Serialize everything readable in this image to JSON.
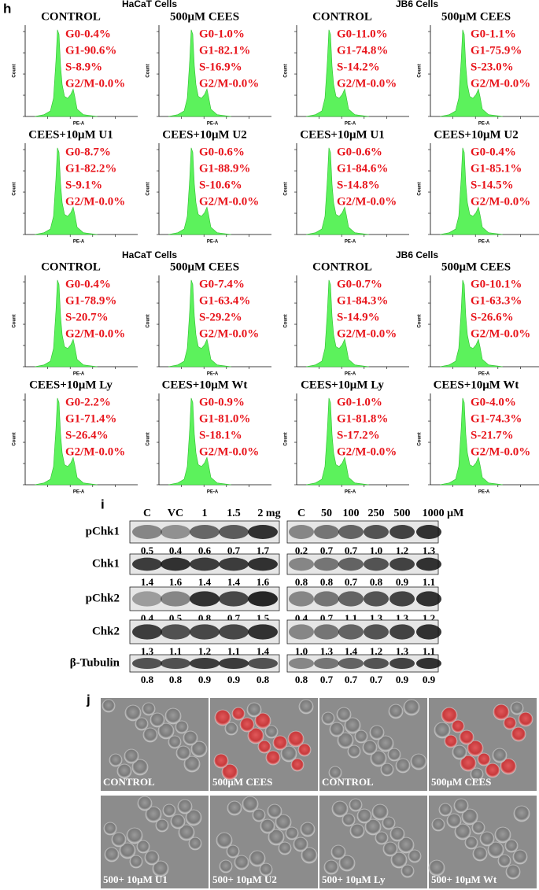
{
  "panel_h": {
    "label": "h",
    "x_label": "PE-A",
    "y_label": "Count",
    "sections": [
      {
        "groups": [
          {
            "cell_line": "HaCaT Cells",
            "plots": [
              {
                "title": "CONTROL",
                "stats": [
                  "G0-0.4%",
                  "G1-90.6%",
                  "S-8.9%",
                  "G2/M-0.0%"
                ]
              },
              {
                "title": "500μM CEES",
                "stats": [
                  "G0-1.0%",
                  "G1-82.1%",
                  "S-16.9%",
                  "G2/M-0.0%"
                ]
              },
              {
                "title": "CEES+10μM U1",
                "stats": [
                  "G0-8.7%",
                  "G1-82.2%",
                  "S-9.1%",
                  "G2/M-0.0%"
                ]
              },
              {
                "title": "CEES+10μM U2",
                "stats": [
                  "G0-0.6%",
                  "G1-88.9%",
                  "S-10.6%",
                  "G2/M-0.0%"
                ]
              }
            ]
          },
          {
            "cell_line": "JB6 Cells",
            "plots": [
              {
                "title": "CONTROL",
                "stats": [
                  "G0-11.0%",
                  "G1-74.8%",
                  "S-14.2%",
                  "G2/M-0.0%"
                ]
              },
              {
                "title": "500μM CEES",
                "stats": [
                  "G0-1.1%",
                  "G1-75.9%",
                  "S-23.0%",
                  "G2/M-0.0%"
                ]
              },
              {
                "title": "CEES+10μM U1",
                "stats": [
                  "G0-0.6%",
                  "G1-84.6%",
                  "S-14.8%",
                  "G2/M-0.0%"
                ]
              },
              {
                "title": "CEES+10μM U2",
                "stats": [
                  "G0-0.4%",
                  "G1-85.1%",
                  "S-14.5%",
                  "G2/M-0.0%"
                ]
              }
            ]
          }
        ]
      },
      {
        "groups": [
          {
            "cell_line": "HaCaT Cells",
            "plots": [
              {
                "title": "CONTROL",
                "stats": [
                  "G0-0.4%",
                  "G1-78.9%",
                  "S-20.7%",
                  "G2/M-0.0%"
                ]
              },
              {
                "title": "500μM CEES",
                "stats": [
                  "G0-7.4%",
                  "G1-63.4%",
                  "S-29.2%",
                  "G2/M-0.0%"
                ]
              },
              {
                "title": "CEES+10μM Ly",
                "stats": [
                  "G0-2.2%",
                  "G1-71.4%",
                  "S-26.4%",
                  "G2/M-0.0%"
                ]
              },
              {
                "title": "CEES+10μM Wt",
                "stats": [
                  "G0-0.9%",
                  "G1-81.0%",
                  "S-18.1%",
                  "G2/M-0.0%"
                ]
              }
            ]
          },
          {
            "cell_line": "JB6 Cells",
            "plots": [
              {
                "title": "CONTROL",
                "stats": [
                  "G0-0.7%",
                  "G1-84.3%",
                  "S-14.9%",
                  "G2/M-0.0%"
                ]
              },
              {
                "title": "500μM CEES",
                "stats": [
                  "G0-10.1%",
                  "G1-63.3%",
                  "S-26.6%",
                  "G2/M-0.0%"
                ]
              },
              {
                "title": "CEES+10μM Ly",
                "stats": [
                  "G0-1.0%",
                  "G1-81.8%",
                  "S-17.2%",
                  "G2/M-0.0%"
                ]
              },
              {
                "title": "CEES+10μM Wt",
                "stats": [
                  "G0-4.0%",
                  "G1-74.3%",
                  "S-21.7%",
                  "G2/M-0.0%"
                ]
              }
            ]
          }
        ]
      }
    ]
  },
  "panel_i": {
    "label": "i",
    "left_lanes": [
      "C",
      "VC",
      "1",
      "1.5",
      "2 mg"
    ],
    "right_lanes": [
      "C",
      "50",
      "100",
      "250",
      "500",
      "1000 μM"
    ],
    "rows": [
      {
        "name": "pChk1",
        "left": [
          "0.5",
          "0.4",
          "0.6",
          "0.7",
          "1.7"
        ],
        "right": [
          "0.2",
          "0.7",
          "0.7",
          "1.0",
          "1.2",
          "1.3"
        ]
      },
      {
        "name": "Chk1",
        "left": [
          "1.4",
          "1.6",
          "1.4",
          "1.4",
          "1.6"
        ],
        "right": [
          "0.8",
          "0.8",
          "0.7",
          "0.8",
          "0.9",
          "1.1"
        ]
      },
      {
        "name": "pChk2",
        "left": [
          "0.4",
          "0.5",
          "0.8",
          "0.7",
          "1.5"
        ],
        "right": [
          "0.4",
          "0.7",
          "1.1",
          "1.3",
          "1.3",
          "1.2"
        ]
      },
      {
        "name": "Chk2",
        "left": [
          "1.3",
          "1.1",
          "1.2",
          "1.1",
          "1.4"
        ],
        "right": [
          "1.0",
          "1.3",
          "1.4",
          "1.2",
          "1.3",
          "1.1"
        ]
      },
      {
        "name": "β-Tubulin",
        "left": [
          "0.8",
          "0.8",
          "0.9",
          "0.9",
          "0.8"
        ],
        "right": [
          "0.8",
          "0.7",
          "0.7",
          "0.7",
          "0.9",
          "0.9"
        ]
      }
    ]
  },
  "panel_j": {
    "label": "j",
    "captions": [
      "CONTROL",
      "500μM CEES",
      "CONTROL",
      "500μM CEES",
      "500+ 10μM U1",
      "500+ 10μM U2",
      "500+ 10μM Ly",
      "500+ 10μM Wt"
    ]
  }
}
